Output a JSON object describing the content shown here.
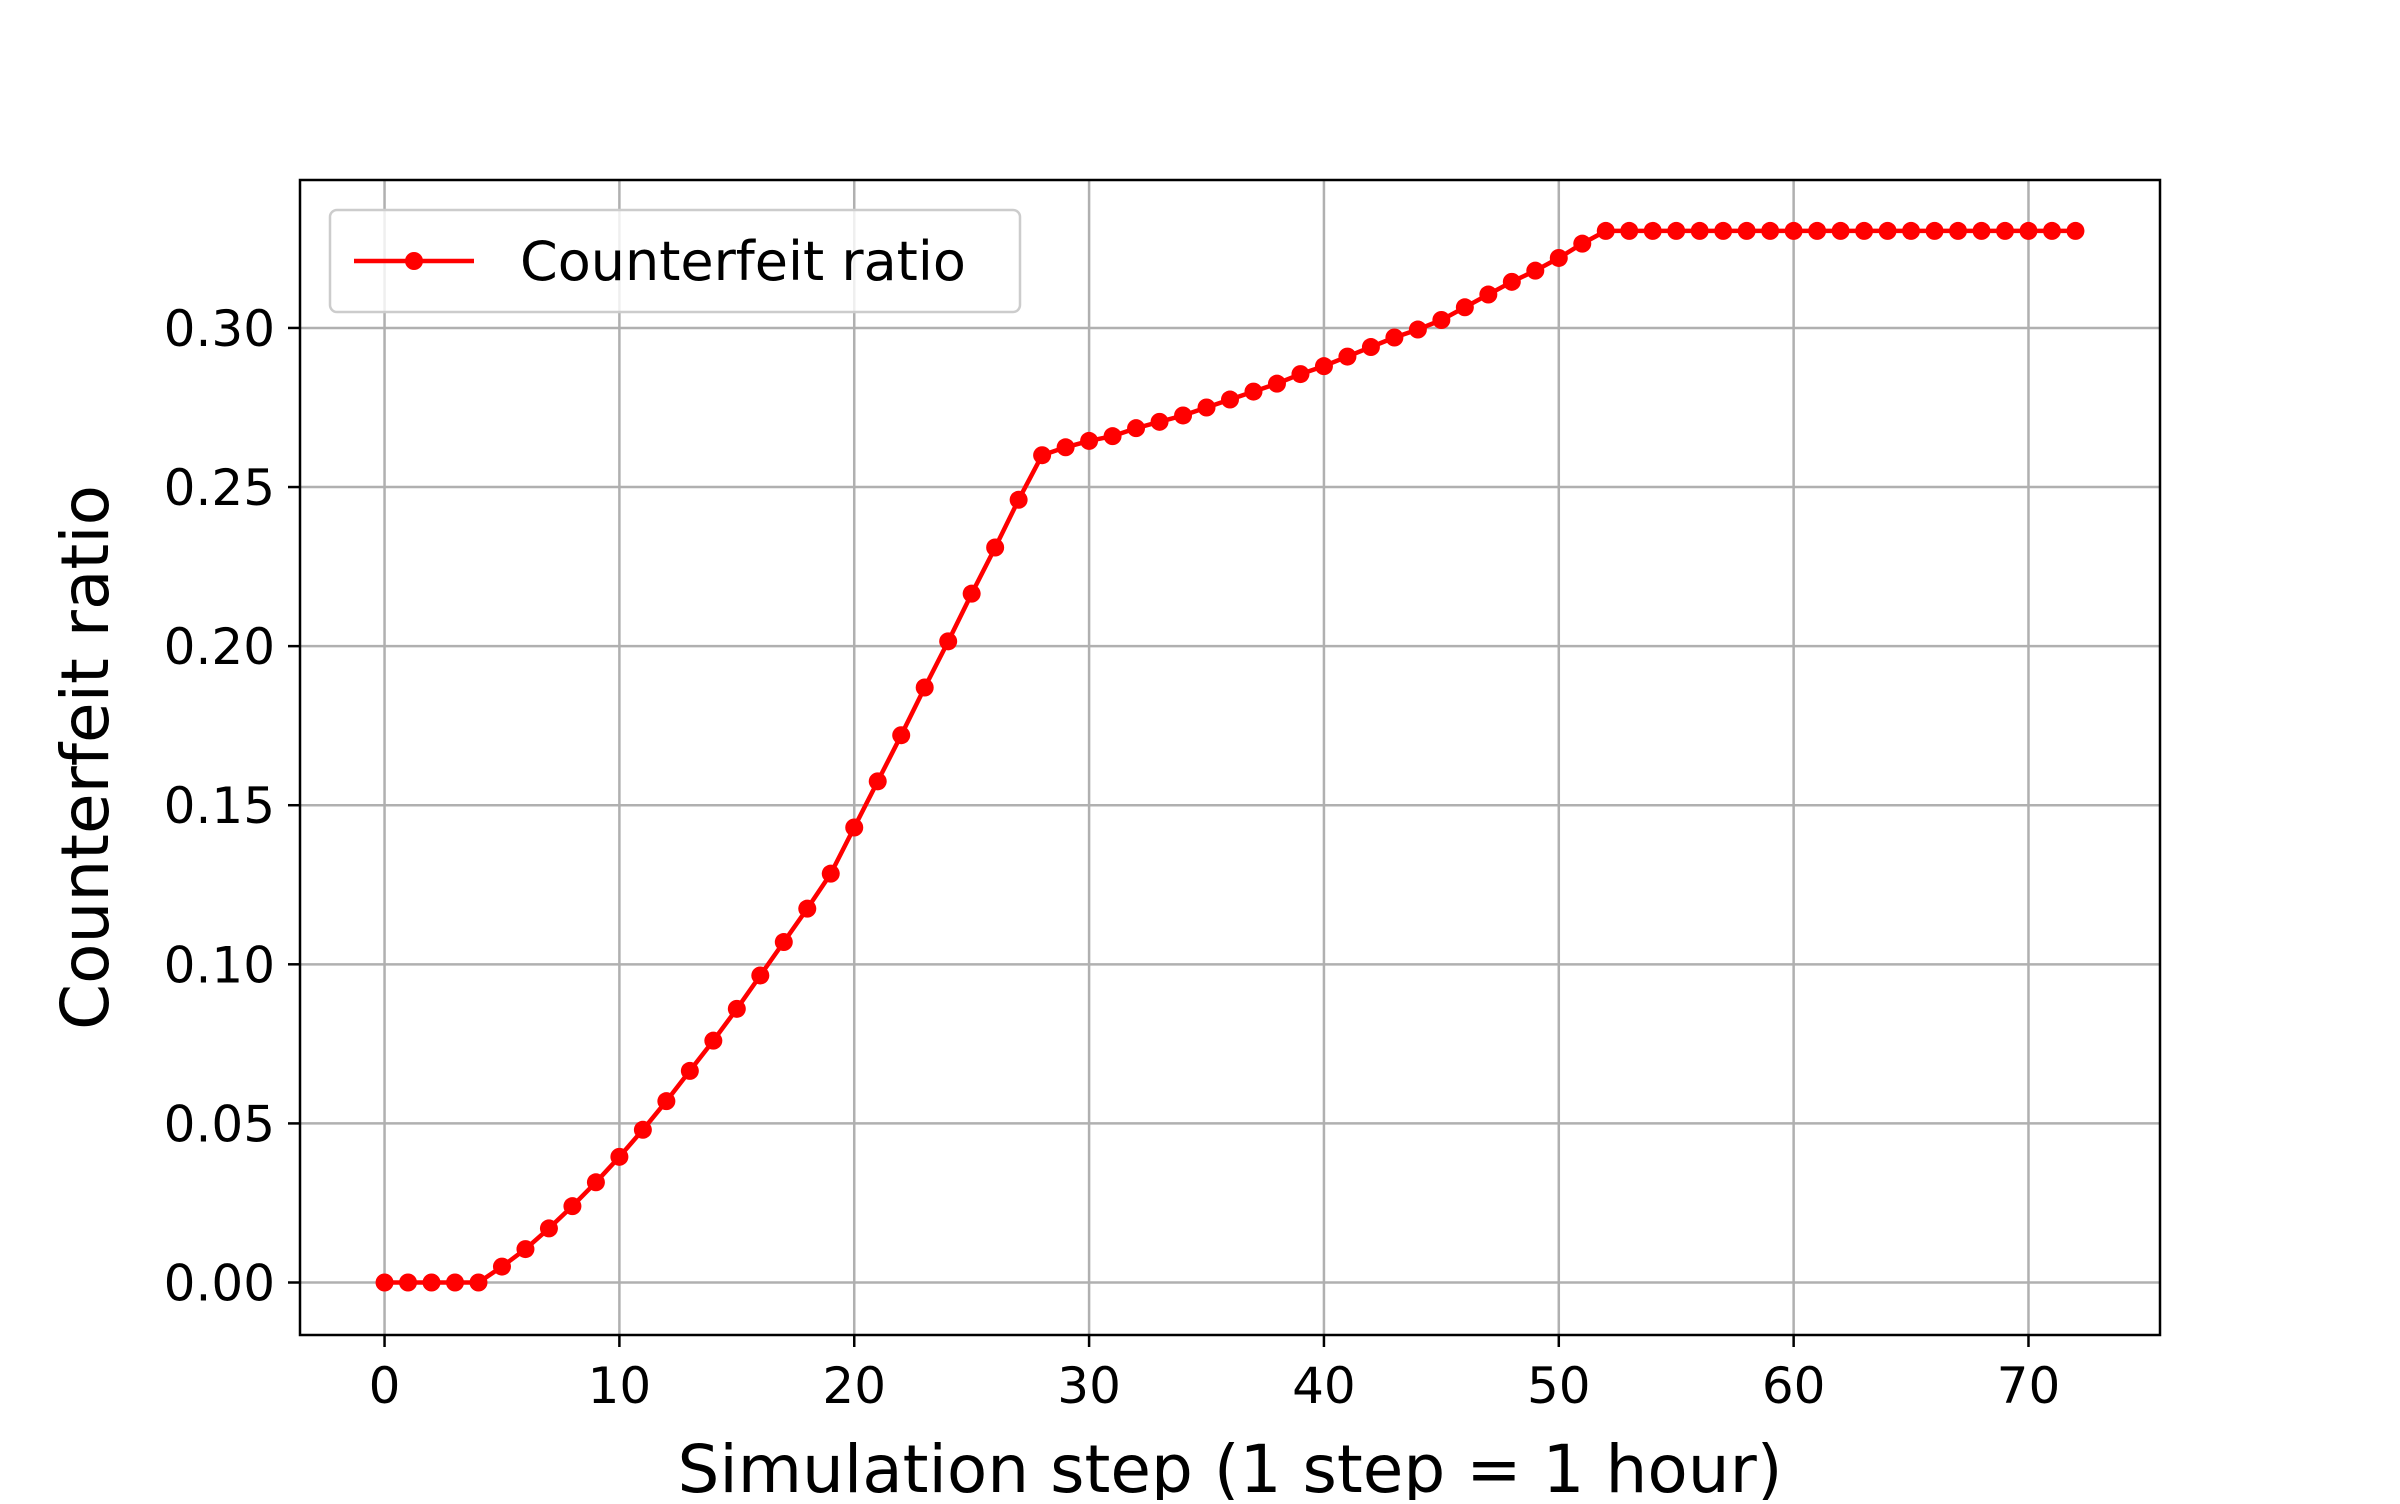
{
  "chart_data": {
    "type": "line",
    "title": "",
    "xlabel": "Simulation step (1 step = 1 hour)",
    "ylabel": "Counterfeit ratio",
    "xlim": [
      -3.6,
      75.6
    ],
    "ylim": [
      -0.0165,
      0.3465
    ],
    "xticks": [
      0,
      10,
      20,
      30,
      40,
      50,
      60,
      70
    ],
    "xtick_labels": [
      "0",
      "10",
      "20",
      "30",
      "40",
      "50",
      "60",
      "70"
    ],
    "yticks": [
      0.0,
      0.05,
      0.1,
      0.15,
      0.2,
      0.25,
      0.3
    ],
    "ytick_labels": [
      "0.00",
      "0.05",
      "0.10",
      "0.15",
      "0.20",
      "0.25",
      "0.30"
    ],
    "grid": true,
    "legend": {
      "position": "upper left"
    },
    "series": [
      {
        "name": "Counterfeit ratio",
        "color": "#ff0000",
        "marker": "circle",
        "x": [
          0,
          1,
          2,
          3,
          4,
          5,
          6,
          7,
          8,
          9,
          10,
          11,
          12,
          13,
          14,
          15,
          16,
          17,
          18,
          19,
          20,
          21,
          22,
          23,
          24,
          25,
          26,
          27,
          28,
          29,
          30,
          31,
          32,
          33,
          34,
          35,
          36,
          37,
          38,
          39,
          40,
          41,
          42,
          43,
          44,
          45,
          46,
          47,
          48,
          49,
          50,
          51,
          52,
          53,
          54,
          55,
          56,
          57,
          58,
          59,
          60,
          61,
          62,
          63,
          64,
          65,
          66,
          67,
          68,
          69,
          70,
          71,
          72
        ],
        "y": [
          0.0,
          0.0,
          0.0,
          0.0,
          0.0,
          0.005,
          0.0105,
          0.017,
          0.024,
          0.0315,
          0.0395,
          0.048,
          0.057,
          0.0665,
          0.076,
          0.086,
          0.0965,
          0.107,
          0.1175,
          0.1285,
          0.143,
          0.1575,
          0.172,
          0.187,
          0.2015,
          0.2165,
          0.231,
          0.246,
          0.26,
          0.2625,
          0.2645,
          0.266,
          0.2685,
          0.2705,
          0.2725,
          0.275,
          0.2775,
          0.28,
          0.2825,
          0.2855,
          0.288,
          0.291,
          0.294,
          0.297,
          0.2995,
          0.3025,
          0.3065,
          0.3105,
          0.3145,
          0.318,
          0.322,
          0.3265,
          0.3305,
          0.3305,
          0.3305,
          0.3305,
          0.3305,
          0.3305,
          0.3305,
          0.3305,
          0.3305,
          0.3305,
          0.3305,
          0.3305,
          0.3305,
          0.3305,
          0.3305,
          0.3305,
          0.3305,
          0.3305,
          0.3305,
          0.3305,
          0.3305
        ]
      }
    ]
  }
}
